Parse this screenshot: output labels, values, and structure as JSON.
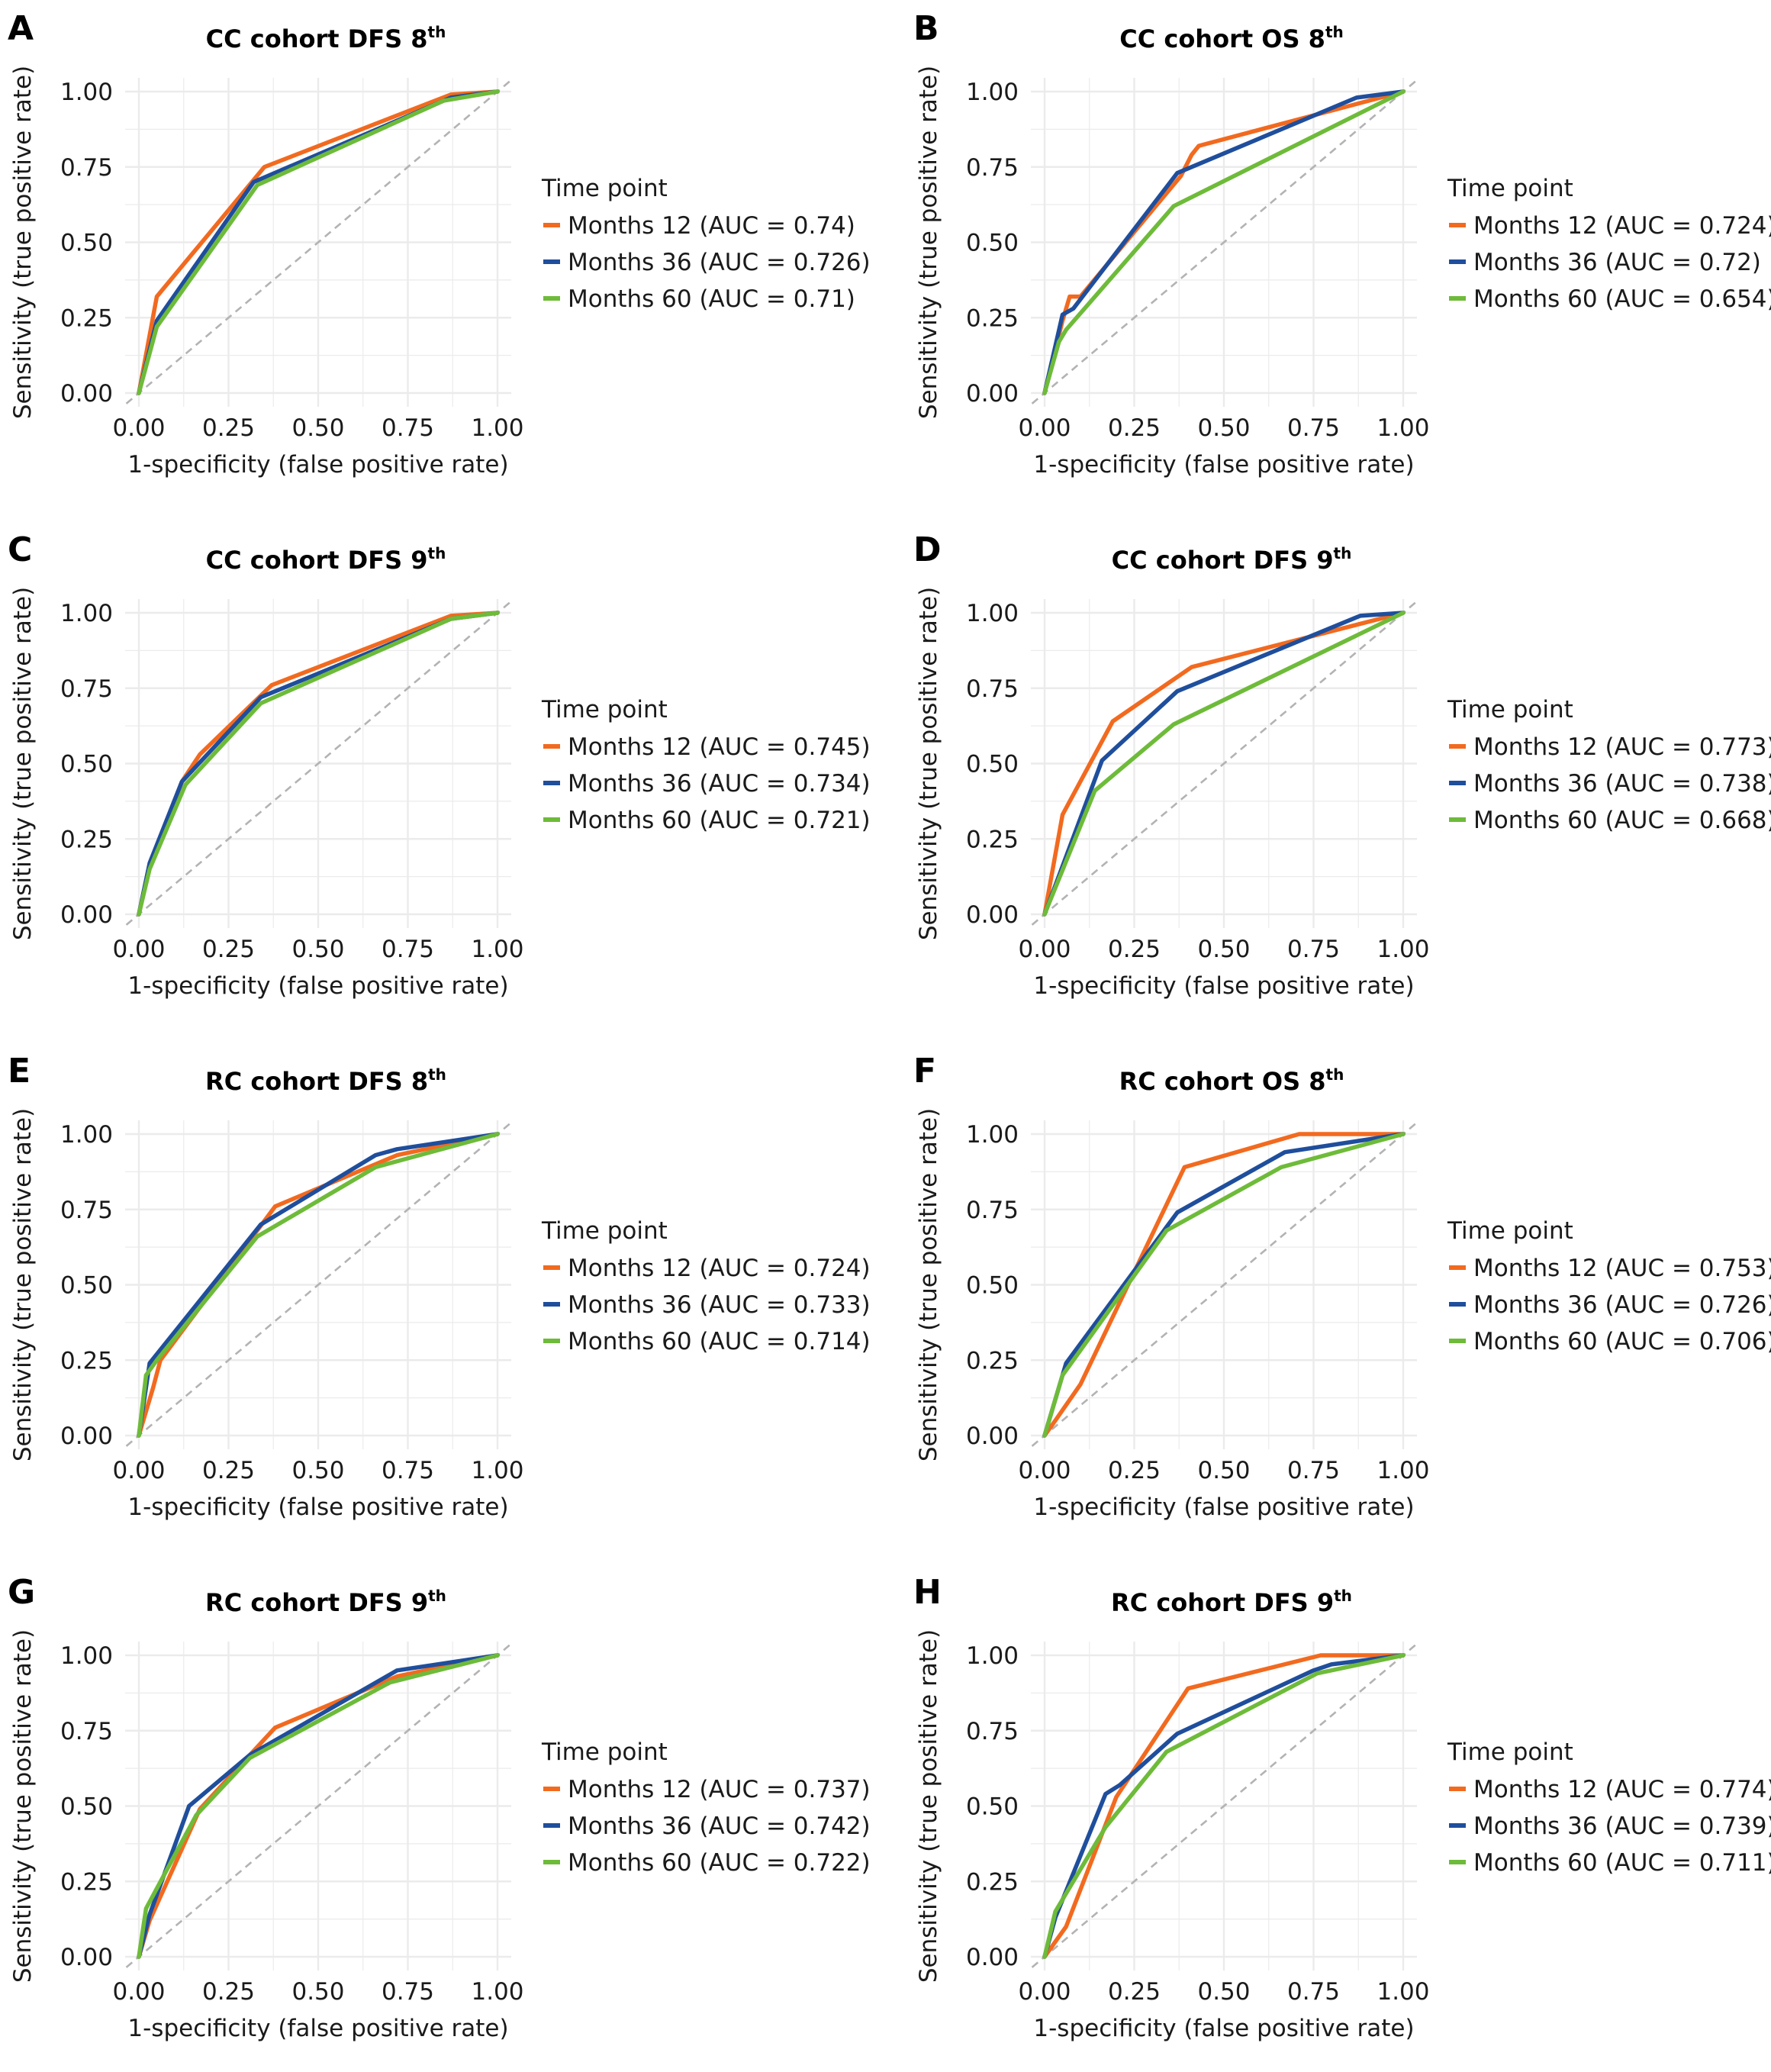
{
  "figure": {
    "x_axis_title": "1-specificity (false positive rate)",
    "y_axis_title": "Sensitivity (true positive rate)",
    "legend_title": "Time point",
    "series_colors": {
      "Months 12": "#F26A1F",
      "Months 36": "#1F4E9C",
      "Months 60": "#6EBB3A"
    },
    "reference_line_color": "#b3b3b3",
    "grid_color": "#ebebeb"
  },
  "chart_data": [
    {
      "type": "line",
      "panel": "A",
      "title": "CC cohort DFS 8",
      "title_sup": "th",
      "xlabel": "1-specificity (false positive rate)",
      "ylabel": "Sensitivity (true positive rate)",
      "xlim": [
        0,
        1
      ],
      "ylim": [
        0,
        1
      ],
      "x_ticks": [
        "0.00",
        "0.25",
        "0.50",
        "0.75",
        "1.00"
      ],
      "y_ticks": [
        "0.00",
        "0.25",
        "0.50",
        "0.75",
        "1.00"
      ],
      "legend_title": "Time point",
      "series": [
        {
          "name": "Months 12",
          "label": "Months 12 (AUC = 0.74)",
          "x": [
            0,
            0.05,
            0.35,
            0.87,
            1
          ],
          "y": [
            0,
            0.32,
            0.75,
            0.99,
            1
          ]
        },
        {
          "name": "Months 36",
          "label": "Months 36 (AUC = 0.726)",
          "x": [
            0,
            0.05,
            0.32,
            0.87,
            1
          ],
          "y": [
            0,
            0.24,
            0.7,
            0.98,
            1
          ]
        },
        {
          "name": "Months 60",
          "label": "Months 60 (AUC = 0.71)",
          "x": [
            0,
            0.05,
            0.33,
            0.85,
            1
          ],
          "y": [
            0,
            0.22,
            0.69,
            0.97,
            1
          ]
        }
      ]
    },
    {
      "type": "line",
      "panel": "B",
      "title": "CC cohort OS 8",
      "title_sup": "th",
      "xlabel": "1-specificity (false positive rate)",
      "ylabel": "Sensitivity (true positive rate)",
      "xlim": [
        0,
        1
      ],
      "ylim": [
        0,
        1
      ],
      "x_ticks": [
        "0.00",
        "0.25",
        "0.50",
        "0.75",
        "1.00"
      ],
      "y_ticks": [
        "0.00",
        "0.25",
        "0.50",
        "0.75",
        "1.00"
      ],
      "legend_title": "Time point",
      "series": [
        {
          "name": "Months 12",
          "label": "Months 12 (AUC = 0.724)",
          "x": [
            0,
            0.05,
            0.07,
            0.1,
            0.38,
            0.41,
            0.43,
            1
          ],
          "y": [
            0,
            0.24,
            0.32,
            0.32,
            0.72,
            0.79,
            0.82,
            1
          ]
        },
        {
          "name": "Months 36",
          "label": "Months 36 (AUC = 0.72)",
          "x": [
            0,
            0.05,
            0.08,
            0.37,
            0.87,
            1
          ],
          "y": [
            0,
            0.26,
            0.28,
            0.73,
            0.98,
            1
          ]
        },
        {
          "name": "Months 60",
          "label": "Months 60 (AUC = 0.654)",
          "x": [
            0,
            0.04,
            0.06,
            0.36,
            1
          ],
          "y": [
            0,
            0.17,
            0.21,
            0.62,
            1
          ]
        }
      ]
    },
    {
      "type": "line",
      "panel": "C",
      "title": "CC cohort DFS 9",
      "title_sup": "th",
      "xlabel": "1-specificity (false positive rate)",
      "ylabel": "Sensitivity (true positive rate)",
      "xlim": [
        0,
        1
      ],
      "ylim": [
        0,
        1
      ],
      "x_ticks": [
        "0.00",
        "0.25",
        "0.50",
        "0.75",
        "1.00"
      ],
      "y_ticks": [
        "0.00",
        "0.25",
        "0.50",
        "0.75",
        "1.00"
      ],
      "legend_title": "Time point",
      "series": [
        {
          "name": "Months 12",
          "label": "Months 12 (AUC = 0.745)",
          "x": [
            0,
            0.03,
            0.12,
            0.17,
            0.37,
            0.87,
            1
          ],
          "y": [
            0,
            0.16,
            0.44,
            0.53,
            0.76,
            0.99,
            1
          ]
        },
        {
          "name": "Months 36",
          "label": "Months 36 (AUC = 0.734)",
          "x": [
            0,
            0.03,
            0.12,
            0.34,
            0.87,
            1
          ],
          "y": [
            0,
            0.17,
            0.44,
            0.72,
            0.98,
            1
          ]
        },
        {
          "name": "Months 60",
          "label": "Months 60 (AUC = 0.721)",
          "x": [
            0,
            0.03,
            0.13,
            0.34,
            0.87,
            1
          ],
          "y": [
            0,
            0.15,
            0.43,
            0.7,
            0.98,
            1
          ]
        }
      ]
    },
    {
      "type": "line",
      "panel": "D",
      "title": "CC cohort DFS 9",
      "title_sup": "th",
      "xlabel": "1-specificity (false positive rate)",
      "ylabel": "Sensitivity (true positive rate)",
      "xlim": [
        0,
        1
      ],
      "ylim": [
        0,
        1
      ],
      "x_ticks": [
        "0.00",
        "0.25",
        "0.50",
        "0.75",
        "1.00"
      ],
      "y_ticks": [
        "0.00",
        "0.25",
        "0.50",
        "0.75",
        "1.00"
      ],
      "legend_title": "Time point",
      "series": [
        {
          "name": "Months 12",
          "label": "Months 12 (AUC = 0.773)",
          "x": [
            0,
            0.05,
            0.19,
            0.41,
            1
          ],
          "y": [
            0,
            0.33,
            0.64,
            0.82,
            1
          ]
        },
        {
          "name": "Months 36",
          "label": "Months 36 (AUC = 0.738)",
          "x": [
            0,
            0.16,
            0.37,
            0.88,
            1
          ],
          "y": [
            0,
            0.51,
            0.74,
            0.99,
            1
          ]
        },
        {
          "name": "Months 60",
          "label": "Months 60 (AUC = 0.668)",
          "x": [
            0,
            0.14,
            0.36,
            1
          ],
          "y": [
            0,
            0.41,
            0.63,
            1
          ]
        }
      ]
    },
    {
      "type": "line",
      "panel": "E",
      "title": "RC cohort DFS 8",
      "title_sup": "th",
      "xlabel": "1-specificity (false positive rate)",
      "ylabel": "Sensitivity (true positive rate)",
      "xlim": [
        0,
        1
      ],
      "ylim": [
        0,
        1
      ],
      "x_ticks": [
        "0.00",
        "0.25",
        "0.50",
        "0.75",
        "1.00"
      ],
      "y_ticks": [
        "0.00",
        "0.25",
        "0.50",
        "0.75",
        "1.00"
      ],
      "legend_title": "Time point",
      "series": [
        {
          "name": "Months 12",
          "label": "Months 12 (AUC = 0.724)",
          "x": [
            0,
            0.04,
            0.06,
            0.33,
            0.38,
            0.66,
            0.72,
            1
          ],
          "y": [
            0,
            0.16,
            0.25,
            0.68,
            0.76,
            0.9,
            0.93,
            1
          ]
        },
        {
          "name": "Months 36",
          "label": "Months 36 (AUC = 0.733)",
          "x": [
            0,
            0.03,
            0.34,
            0.66,
            0.72,
            1
          ],
          "y": [
            0,
            0.24,
            0.7,
            0.93,
            0.95,
            1
          ]
        },
        {
          "name": "Months 60",
          "label": "Months 60 (AUC = 0.714)",
          "x": [
            0,
            0.02,
            0.05,
            0.33,
            0.66,
            0.72,
            1
          ],
          "y": [
            0,
            0.2,
            0.25,
            0.66,
            0.89,
            0.91,
            1
          ]
        }
      ]
    },
    {
      "type": "line",
      "panel": "F",
      "title": "RC cohort OS 8",
      "title_sup": "th",
      "xlabel": "1-specificity (false positive rate)",
      "ylabel": "Sensitivity (true positive rate)",
      "xlim": [
        0,
        1
      ],
      "ylim": [
        0,
        1
      ],
      "x_ticks": [
        "0.00",
        "0.25",
        "0.50",
        "0.75",
        "1.00"
      ],
      "y_ticks": [
        "0.00",
        "0.25",
        "0.50",
        "0.75",
        "1.00"
      ],
      "legend_title": "Time point",
      "series": [
        {
          "name": "Months 12",
          "label": "Months 12 (AUC = 0.753)",
          "x": [
            0,
            0.03,
            0.1,
            0.39,
            0.71,
            1
          ],
          "y": [
            0,
            0.05,
            0.17,
            0.89,
            1,
            1
          ]
        },
        {
          "name": "Months 36",
          "label": "Months 36 (AUC = 0.726)",
          "x": [
            0,
            0.06,
            0.37,
            0.67,
            1
          ],
          "y": [
            0,
            0.24,
            0.74,
            0.94,
            1
          ]
        },
        {
          "name": "Months 60",
          "label": "Months 60 (AUC = 0.706)",
          "x": [
            0,
            0.05,
            0.34,
            0.66,
            1
          ],
          "y": [
            0,
            0.2,
            0.68,
            0.89,
            1
          ]
        }
      ]
    },
    {
      "type": "line",
      "panel": "G",
      "title": "RC cohort DFS 9",
      "title_sup": "th",
      "xlabel": "1-specificity (false positive rate)",
      "ylabel": "Sensitivity (true positive rate)",
      "xlim": [
        0,
        1
      ],
      "ylim": [
        0,
        1
      ],
      "x_ticks": [
        "0.00",
        "0.25",
        "0.50",
        "0.75",
        "1.00"
      ],
      "y_ticks": [
        "0.00",
        "0.25",
        "0.50",
        "0.75",
        "1.00"
      ],
      "legend_title": "Time point",
      "series": [
        {
          "name": "Months 12",
          "label": "Months 12 (AUC = 0.737)",
          "x": [
            0,
            0.03,
            0.17,
            0.38,
            0.72,
            1
          ],
          "y": [
            0,
            0.12,
            0.49,
            0.76,
            0.93,
            1
          ]
        },
        {
          "name": "Months 36",
          "label": "Months 36 (AUC = 0.742)",
          "x": [
            0,
            0.03,
            0.14,
            0.31,
            0.72,
            1
          ],
          "y": [
            0,
            0.14,
            0.5,
            0.67,
            0.95,
            1
          ]
        },
        {
          "name": "Months 60",
          "label": "Months 60 (AUC = 0.722)",
          "x": [
            0,
            0.02,
            0.16,
            0.31,
            0.7,
            1
          ],
          "y": [
            0,
            0.16,
            0.47,
            0.66,
            0.91,
            1
          ]
        }
      ]
    },
    {
      "type": "line",
      "panel": "H",
      "title": "RC cohort DFS 9",
      "title_sup": "th",
      "xlabel": "1-specificity (false positive rate)",
      "ylabel": "Sensitivity (true positive rate)",
      "xlim": [
        0,
        1
      ],
      "ylim": [
        0,
        1
      ],
      "x_ticks": [
        "0.00",
        "0.25",
        "0.50",
        "0.75",
        "1.00"
      ],
      "y_ticks": [
        "0.00",
        "0.25",
        "0.50",
        "0.75",
        "1.00"
      ],
      "legend_title": "Time point",
      "series": [
        {
          "name": "Months 12",
          "label": "Months 12 (AUC = 0.774)",
          "x": [
            0,
            0.06,
            0.2,
            0.4,
            0.77,
            1
          ],
          "y": [
            0,
            0.1,
            0.53,
            0.89,
            1,
            1
          ]
        },
        {
          "name": "Months 36",
          "label": "Months 36 (AUC = 0.739)",
          "x": [
            0,
            0.03,
            0.17,
            0.21,
            0.37,
            0.75,
            0.8,
            1
          ],
          "y": [
            0,
            0.13,
            0.54,
            0.57,
            0.74,
            0.95,
            0.97,
            1
          ]
        },
        {
          "name": "Months 60",
          "label": "Months 60 (AUC = 0.711)",
          "x": [
            0,
            0.03,
            0.17,
            0.34,
            0.76,
            1
          ],
          "y": [
            0,
            0.15,
            0.43,
            0.68,
            0.94,
            1
          ]
        }
      ]
    }
  ]
}
